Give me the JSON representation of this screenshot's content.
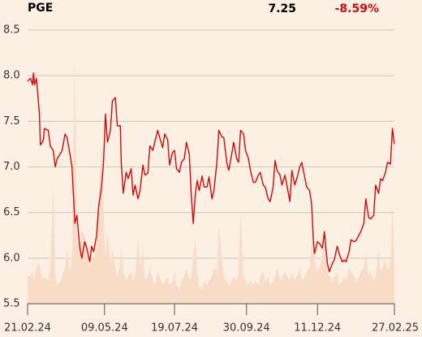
{
  "header": {
    "symbol": "PGE",
    "last": "7.25",
    "change": "-8.59%"
  },
  "chart_data": {
    "type": "line",
    "x": [
      "21.02.24",
      "24.02.24",
      "26.02.24",
      "27.02.24",
      "28.02.24",
      "01.03.24",
      "04.03.24",
      "05.03.24",
      "08.03.24",
      "09.03.24",
      "13.03.24",
      "15.03.24",
      "18.03.24",
      "20.03.24",
      "22.03.24",
      "25.03.24",
      "27.03.24",
      "30.03.24",
      "01.04.24",
      "04.04.24",
      "06.04.24",
      "09.04.24",
      "11.04.24",
      "14.04.24",
      "16.04.24",
      "19.04.24",
      "21.04.24",
      "24.04.24",
      "26.04.24",
      "28.04.24",
      "01.05.24",
      "03.05.24",
      "06.05.24",
      "08.05.24",
      "10.05.24",
      "12.05.24",
      "15.05.24",
      "17.05.24",
      "20.05.24",
      "22.05.24",
      "25.05.24",
      "26.05.24",
      "28.05.24",
      "31.05.24",
      "02.06.24",
      "05.06.24",
      "07.06.24",
      "09.06.24",
      "12.06.24",
      "14.06.24",
      "17.06.24",
      "19.06.24",
      "22.06.24",
      "24.06.24",
      "27.06.24",
      "29.06.24",
      "02.07.24",
      "04.07.24",
      "07.07.24",
      "09.07.24",
      "12.07.24",
      "14.07.24",
      "17.07.24",
      "19.07.24",
      "21.07.24",
      "24.07.24",
      "26.07.24",
      "29.07.24",
      "31.07.24",
      "03.08.24",
      "05.08.24",
      "07.08.24",
      "09.08.24",
      "11.08.24",
      "13.08.24",
      "16.08.24",
      "18.08.24",
      "21.08.24",
      "23.08.24",
      "26.08.24",
      "28.08.24",
      "31.08.24",
      "02.09.24",
      "05.09.24",
      "07.09.24",
      "10.09.24",
      "12.09.24",
      "15.09.24",
      "17.09.24",
      "20.09.24",
      "22.09.24",
      "24.09.24",
      "27.09.24",
      "29.09.24",
      "02.10.24",
      "04.10.24",
      "07.10.24",
      "09.10.24",
      "12.10.24",
      "14.10.24",
      "17.10.24",
      "19.10.24",
      "22.10.24",
      "24.10.24",
      "27.10.24",
      "29.10.24",
      "31.10.24",
      "03.11.24",
      "05.11.24",
      "08.11.24",
      "10.11.24",
      "13.11.24",
      "15.11.24",
      "18.11.24",
      "20.11.24",
      "23.11.24",
      "25.11.24",
      "28.11.24",
      "30.11.24",
      "03.12.24",
      "05.12.24",
      "07.12.24",
      "08.12.24",
      "11.12.24",
      "13.12.24",
      "16.12.24",
      "18.12.24",
      "21.12.24",
      "23.12.24",
      "26.12.24",
      "28.12.24",
      "31.12.24",
      "02.01.25",
      "05.01.25",
      "07.01.25",
      "09.01.25",
      "12.01.25",
      "14.01.25",
      "17.01.25",
      "19.01.25",
      "22.01.25",
      "24.01.25",
      "27.01.25",
      "29.01.25",
      "01.02.25",
      "03.02.25",
      "06.02.25",
      "08.02.25",
      "11.02.25",
      "13.02.25",
      "15.02.25",
      "18.02.25",
      "20.02.25",
      "23.02.25",
      "25.02.25",
      "27.02.25"
    ],
    "series": [
      {
        "color": "#cc0a0a",
        "values": [
          7.94,
          7.97,
          7.9,
          8.03,
          7.9,
          7.97,
          7.58,
          7.24,
          7.29,
          7.42,
          7.4,
          7.23,
          7.18,
          7.0,
          7.09,
          7.14,
          7.18,
          7.36,
          7.32,
          7.14,
          7.0,
          6.38,
          6.47,
          6.11,
          6.0,
          6.18,
          6.11,
          5.96,
          6.13,
          6.07,
          6.25,
          6.56,
          6.78,
          7.05,
          7.58,
          7.27,
          7.4,
          7.72,
          7.76,
          7.45,
          7.45,
          7.05,
          6.71,
          6.94,
          6.87,
          6.98,
          6.69,
          6.8,
          6.65,
          6.74,
          7.02,
          6.91,
          6.93,
          7.23,
          7.18,
          7.27,
          7.4,
          7.32,
          7.21,
          7.36,
          7.3,
          7.02,
          7.16,
          7.18,
          6.98,
          6.94,
          7.05,
          7.09,
          7.27,
          7.14,
          6.69,
          6.38,
          6.69,
          6.85,
          6.74,
          6.9,
          6.78,
          6.78,
          6.89,
          6.65,
          6.74,
          7.05,
          7.4,
          7.33,
          7.32,
          7.05,
          6.96,
          7.14,
          7.27,
          7.09,
          7.05,
          7.4,
          7.36,
          7.18,
          7.09,
          6.96,
          6.83,
          6.83,
          6.91,
          6.94,
          6.8,
          6.78,
          6.65,
          6.62,
          6.78,
          7.07,
          6.96,
          6.91,
          6.8,
          6.91,
          6.8,
          6.62,
          6.96,
          6.8,
          6.87,
          7.0,
          7.05,
          6.89,
          6.78,
          6.74,
          6.6,
          6.16,
          6.05,
          6.18,
          6.16,
          6.11,
          6.29,
          5.94,
          5.85,
          5.94,
          5.98,
          6.13,
          6.05,
          5.96,
          5.98,
          5.96,
          6.07,
          6.2,
          6.18,
          6.19,
          6.25,
          6.29,
          6.38,
          6.65,
          6.44,
          6.43,
          6.47,
          6.8,
          6.71,
          6.87,
          6.85,
          6.94,
          7.05,
          7.03,
          7.42,
          7.25
        ]
      },
      {
        "type": "area",
        "color": "#f8dcc8",
        "values": [
          5.8,
          5.8,
          5.85,
          5.75,
          5.8,
          5.9,
          5.95,
          5.85,
          5.75,
          5.8,
          5.75,
          5.9,
          6.8,
          5.8,
          5.7,
          5.75,
          5.8,
          5.9,
          6.1,
          5.85,
          6.0,
          8.18,
          6.2,
          6.1,
          6.3,
          6.25,
          6.0,
          5.9,
          6.05,
          6.0,
          6.1,
          6.6,
          7.25,
          6.5,
          6.0,
          6.3,
          5.95,
          6.1,
          5.9,
          5.8,
          5.95,
          6.15,
          5.85,
          5.75,
          5.8,
          5.85,
          5.75,
          5.8,
          6.2,
          5.9,
          6.1,
          5.75,
          5.8,
          5.9,
          5.75,
          5.7,
          5.85,
          5.8,
          5.7,
          5.75,
          5.8,
          5.7,
          5.75,
          5.85,
          5.7,
          5.65,
          5.75,
          5.8,
          5.9,
          5.75,
          5.8,
          6.0,
          6.2,
          5.85,
          5.7,
          5.65,
          5.75,
          5.7,
          5.75,
          5.8,
          5.9,
          5.85,
          6.35,
          6.0,
          5.8,
          5.75,
          5.7,
          5.75,
          5.8,
          5.75,
          5.85,
          6.5,
          5.8,
          5.75,
          5.7,
          5.75,
          5.7,
          5.75,
          5.7,
          5.8,
          5.85,
          5.75,
          5.8,
          5.7,
          5.75,
          5.8,
          5.9,
          5.75,
          5.8,
          5.85,
          5.8,
          5.75,
          5.85,
          5.75,
          5.8,
          5.9,
          5.75,
          5.8,
          5.85,
          5.9,
          6.15,
          6.2,
          6.0,
          5.85,
          5.9,
          6.0,
          6.3,
          5.85,
          5.8,
          5.75,
          5.8,
          5.85,
          5.7,
          5.75,
          5.8,
          5.75,
          5.9,
          5.85,
          5.8,
          5.75,
          5.8,
          5.85,
          5.9,
          6.05,
          5.8,
          5.85,
          5.75,
          5.8,
          6.1,
          5.85,
          5.9,
          6.0,
          5.85,
          5.95,
          6.6,
          5.95
        ]
      }
    ],
    "xlim": [
      "21.02.24",
      "27.02.25"
    ],
    "xticks": [
      "21.02.24",
      "09.05.24",
      "19.07.24",
      "30.09.24",
      "11.12.24",
      "27.02.25"
    ],
    "ylim": [
      5.5,
      8.5
    ],
    "yticks": [
      5.5,
      {
        "value": 6,
        "label": "6.0"
      },
      6.5,
      {
        "value": 7,
        "label": "7.0"
      },
      7.5,
      {
        "value": 8,
        "label": "8.0"
      },
      8.5
    ],
    "grid": true
  }
}
